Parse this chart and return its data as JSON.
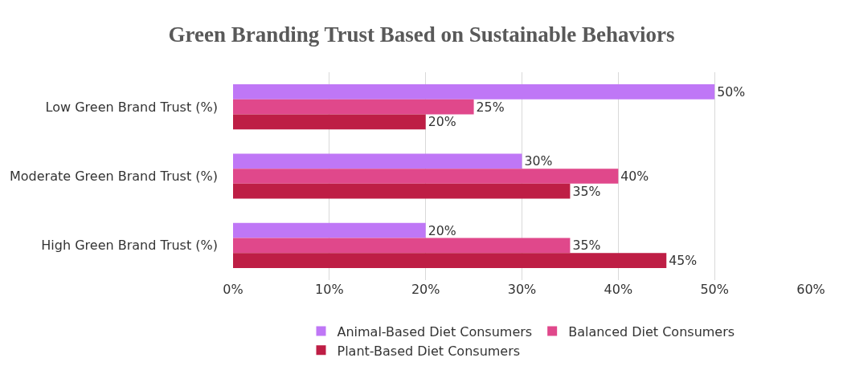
{
  "chart_data": {
    "type": "bar",
    "orientation": "horizontal",
    "title": "Green Branding Trust Based on Sustainable Behaviors",
    "categories": [
      "Low Green Brand Trust (%)",
      "Moderate Green Brand Trust (%)",
      "High Green Brand Trust (%)"
    ],
    "series": [
      {
        "name": "Animal-Based Diet Consumers",
        "color": "#bf77f6",
        "values": [
          50,
          30,
          20
        ],
        "value_labels": [
          "50%",
          "30%",
          "20%"
        ]
      },
      {
        "name": "Balanced Diet Consumers",
        "color": "#e0488b",
        "values": [
          25,
          40,
          35
        ],
        "value_labels": [
          "25%",
          "40%",
          "35%"
        ]
      },
      {
        "name": "Plant-Based Diet Consumers",
        "color": "#be1e45",
        "values": [
          20,
          35,
          45
        ],
        "value_labels": [
          "20%",
          "35%",
          "45%"
        ]
      }
    ],
    "xlim": [
      0,
      60
    ],
    "xticks": [
      {
        "value": 0,
        "label": "0%"
      },
      {
        "value": 10,
        "label": "10%"
      },
      {
        "value": 20,
        "label": "20%"
      },
      {
        "value": 30,
        "label": "30%"
      },
      {
        "value": 40,
        "label": "40%"
      },
      {
        "value": 50,
        "label": "50%"
      },
      {
        "value": 60,
        "label": "60%"
      }
    ],
    "grid": "x",
    "legend": "bottom"
  }
}
